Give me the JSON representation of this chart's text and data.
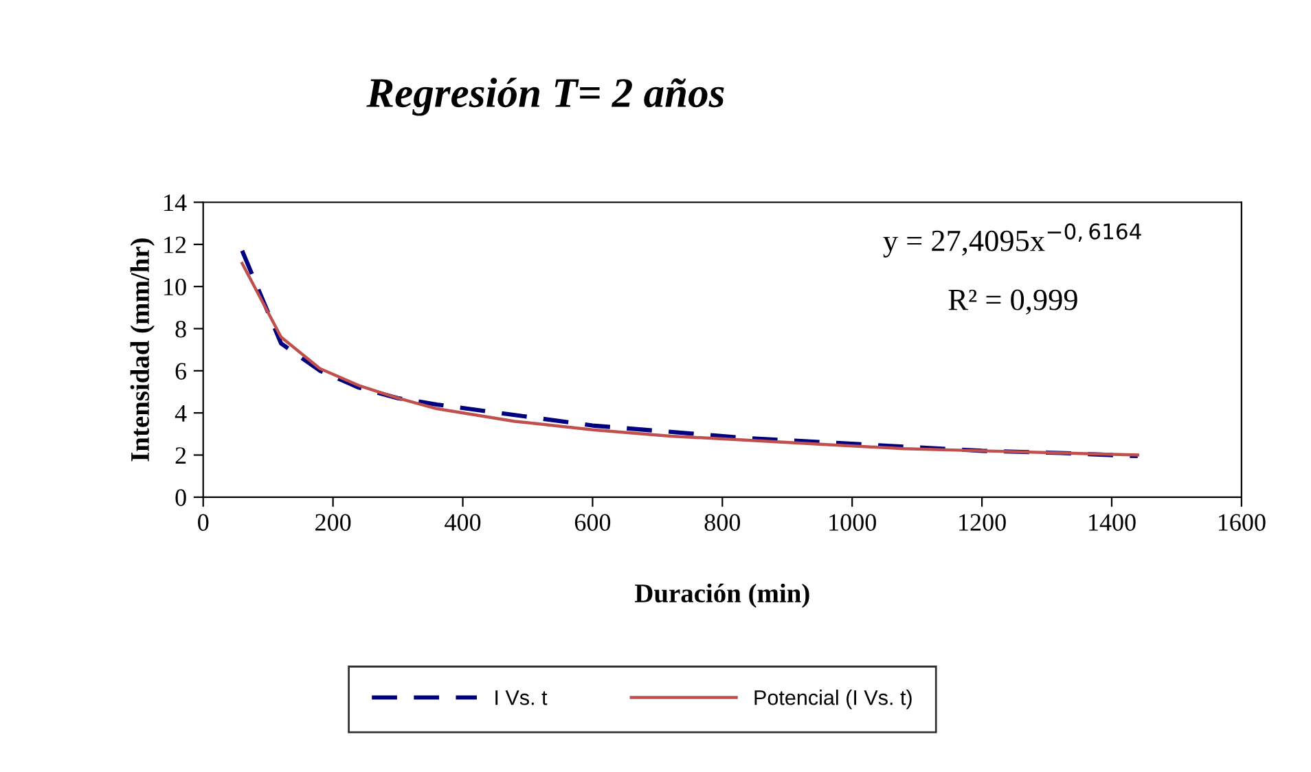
{
  "chart_data": {
    "type": "line",
    "title": "Regresión T= 2 años",
    "xlabel": "Duración (min)",
    "ylabel": "Intensidad (mm/hr)",
    "x": [
      60,
      120,
      180,
      240,
      300,
      360,
      480,
      600,
      720,
      840,
      960,
      1080,
      1200,
      1320,
      1440
    ],
    "series": [
      {
        "name": "I Vs. t",
        "color": "#000080",
        "line_style": "dashed",
        "values": [
          11.7,
          7.3,
          6.0,
          5.2,
          4.7,
          4.4,
          3.9,
          3.4,
          3.1,
          2.8,
          2.6,
          2.4,
          2.2,
          2.1,
          1.95
        ]
      },
      {
        "name": "Potencial (I Vs. t)",
        "color": "#c0504d",
        "line_style": "solid",
        "values": [
          11.1,
          7.6,
          6.1,
          5.3,
          4.7,
          4.2,
          3.6,
          3.2,
          2.9,
          2.7,
          2.5,
          2.3,
          2.2,
          2.1,
          2.0
        ]
      }
    ],
    "xlim": [
      0,
      1600
    ],
    "xticks": [
      0,
      200,
      400,
      600,
      800,
      1000,
      1200,
      1400,
      1600
    ],
    "ylim": [
      0,
      14
    ],
    "yticks": [
      0,
      2,
      4,
      6,
      8,
      10,
      12,
      14
    ],
    "grid": false,
    "legend": "bottom",
    "marker": "none",
    "annotations": [
      "y = 27,4095x$^{−0,6164}$",
      "R² = 0,999"
    ]
  }
}
